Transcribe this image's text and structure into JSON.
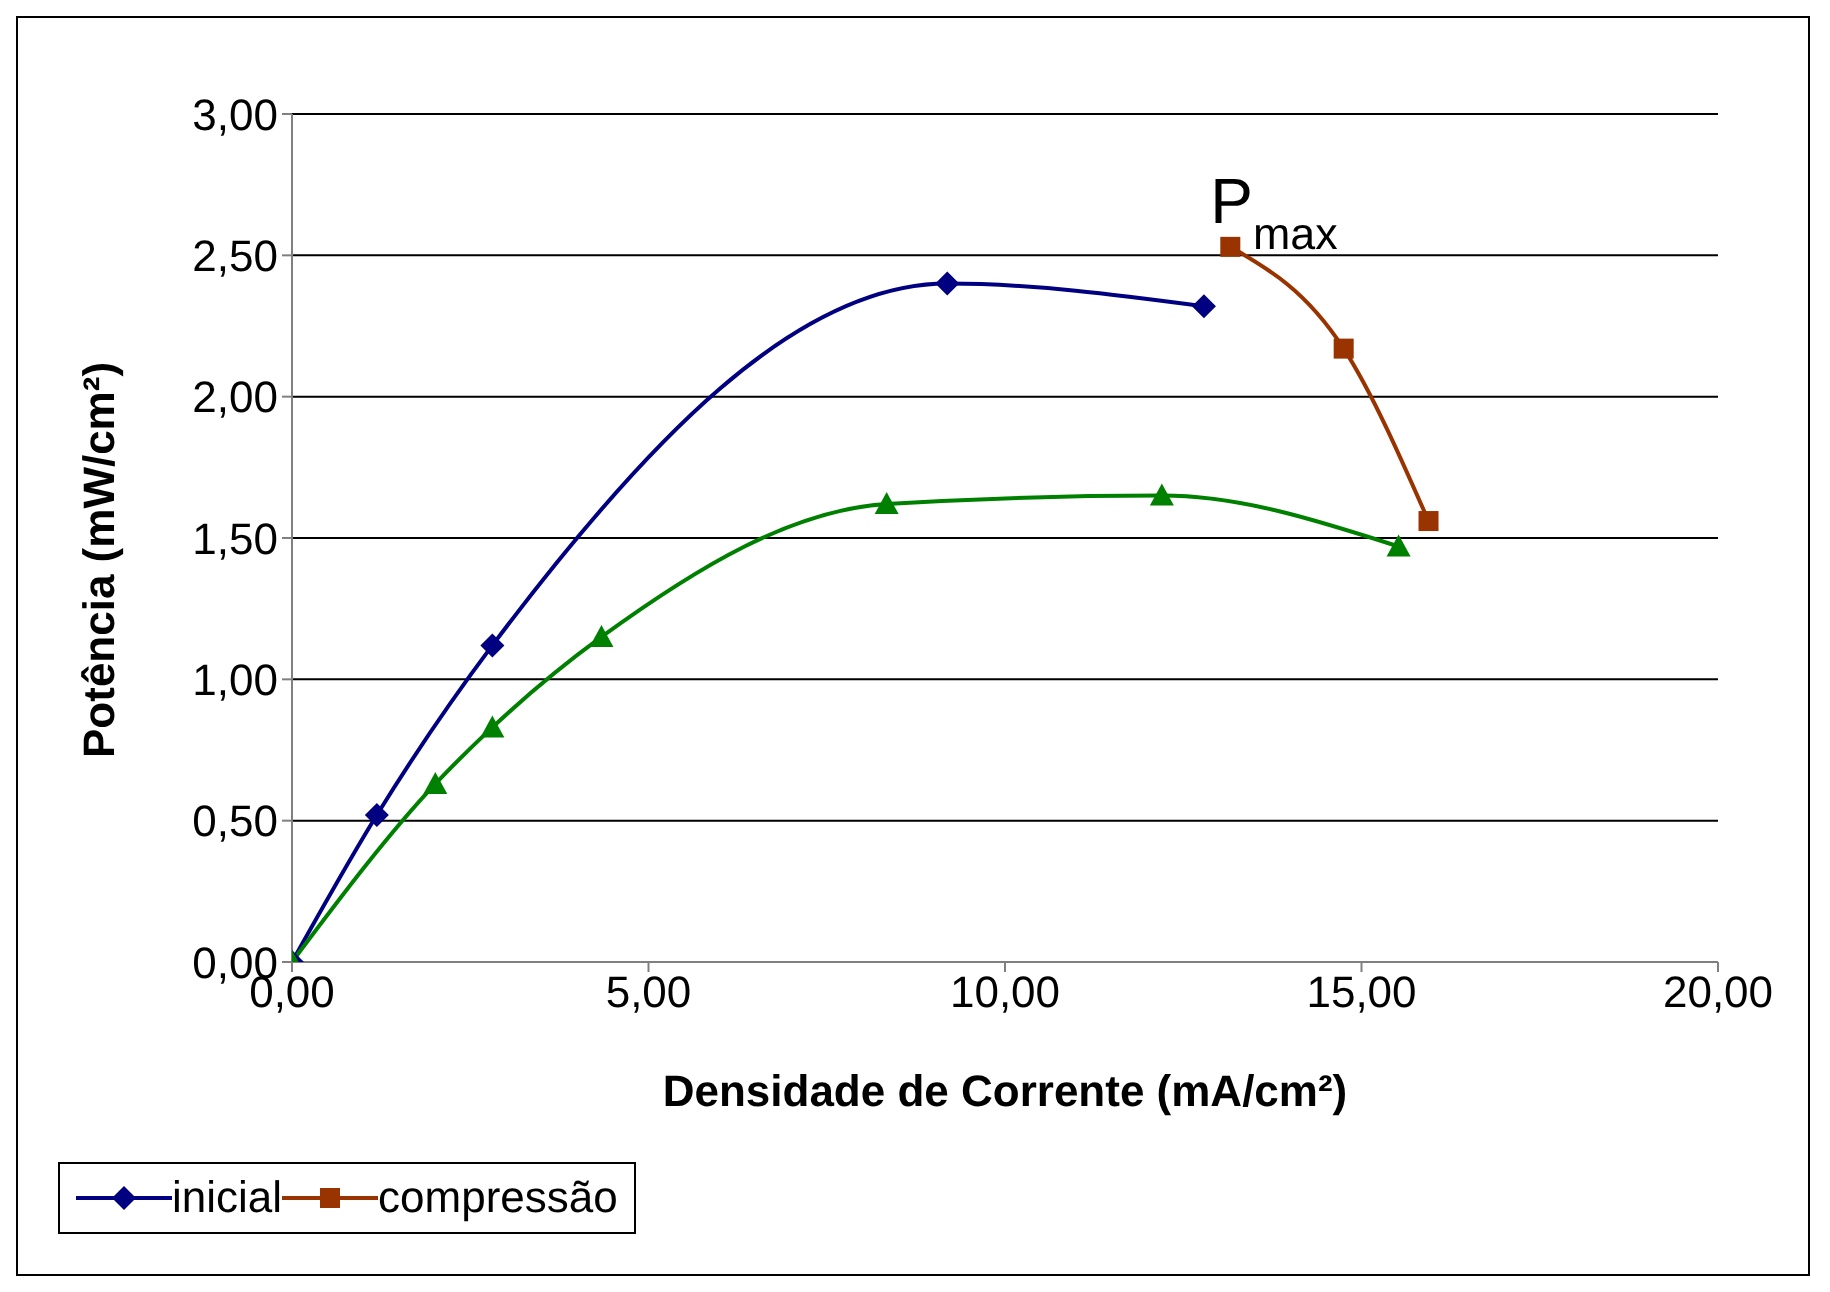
{
  "chart_data": {
    "type": "line",
    "xlabel": "Densidade de Corrente (mA/cm²)",
    "ylabel": "Potência (mW/cm²)",
    "xlim": [
      0,
      20
    ],
    "xticks": [
      {
        "value": 0,
        "label": "0,00"
      },
      {
        "value": 5,
        "label": "5,00"
      },
      {
        "value": 10,
        "label": "10,00"
      },
      {
        "value": 15,
        "label": "15,00"
      },
      {
        "value": 20,
        "label": "20,00"
      }
    ],
    "ylim": [
      0,
      3
    ],
    "yticks": [
      {
        "value": 0,
        "label": "0,00"
      },
      {
        "value": 0.5,
        "label": "0,50"
      },
      {
        "value": 1,
        "label": "1,00"
      },
      {
        "value": 1.5,
        "label": "1,50"
      },
      {
        "value": 2,
        "label": "2,00"
      },
      {
        "value": 2.5,
        "label": "2,50"
      },
      {
        "value": 3,
        "label": "3,00"
      }
    ],
    "grid": "y",
    "legend": "bottom",
    "series": [
      {
        "name": "inicial",
        "color": "#000080",
        "marker": "diamond",
        "x": [
          0,
          1.19,
          2.81,
          9.19,
          12.79
        ],
        "values": [
          0,
          0.52,
          1.12,
          2.4,
          2.32
        ]
      },
      {
        "name": "compressão",
        "color": "#993300",
        "marker": "square",
        "x": [
          13.16,
          14.75,
          15.94
        ],
        "values": [
          2.53,
          2.17,
          1.56
        ]
      },
      {
        "color": "#008000",
        "marker": "triangle",
        "x": [
          0,
          2.01,
          2.81,
          4.34,
          8.34,
          12.2,
          15.52
        ],
        "values": [
          0,
          0.63,
          0.83,
          1.15,
          1.62,
          1.65,
          1.47
        ]
      }
    ],
    "annotations": [
      {
        "text": "P$_{max}$",
        "x": 13.16,
        "y": 2.53
      }
    ]
  }
}
